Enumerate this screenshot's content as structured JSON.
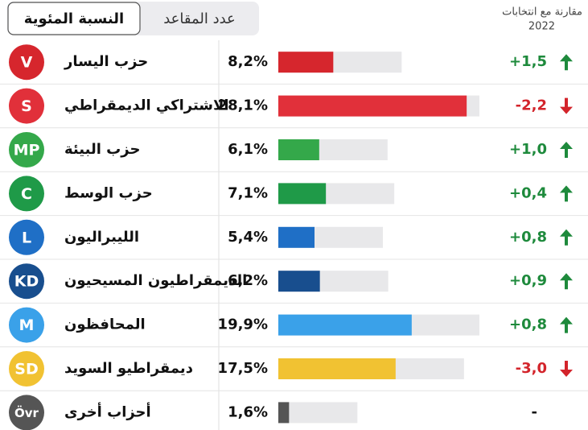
{
  "chart_data": {
    "type": "bar",
    "tabs": [
      "النسبة المئوية",
      "عدد المقاعد"
    ],
    "comparison_header": [
      "مقارنة مع انتخابات",
      "2022"
    ],
    "categories": [
      "حزب اليسار",
      "الاشتراكي الديمقراطي",
      "حزب البيئة",
      "حزب الوسط",
      "الليبراليون",
      "الديمقراطيون المسيحيون",
      "المحافظون",
      "ديمقراطيو السويد",
      "أحزاب أخرى"
    ],
    "badges": [
      "V",
      "S",
      "MP",
      "C",
      "L",
      "KD",
      "M",
      "SD",
      "Övr"
    ],
    "colors": [
      "#d6262d",
      "#e1303a",
      "#34a84a",
      "#1f9a48",
      "#1f6fc6",
      "#184e8e",
      "#3aa1e9",
      "#f1c232",
      "#555555"
    ],
    "values": [
      8.2,
      28.1,
      6.1,
      7.1,
      5.4,
      6.2,
      19.9,
      17.5,
      1.6
    ],
    "value_labels": [
      "8,2%",
      "28,1%",
      "6,1%",
      "7,1%",
      "5,4%",
      "6,2%",
      "19,9%",
      "17,5%",
      "1,6%"
    ],
    "changes": {
      "values": [
        1.5,
        -2.2,
        1.0,
        0.4,
        0.8,
        0.9,
        0.8,
        -3.0,
        null
      ],
      "value_labels": [
        "+1,5",
        "-2,2",
        "+1,0",
        "+0,4",
        "+0,8",
        "+0,9",
        "+0,8",
        "-3,0",
        "-"
      ],
      "up_color": "#1e8a3c",
      "down_color": "#d3242b"
    },
    "xlim": [
      0,
      30
    ]
  }
}
